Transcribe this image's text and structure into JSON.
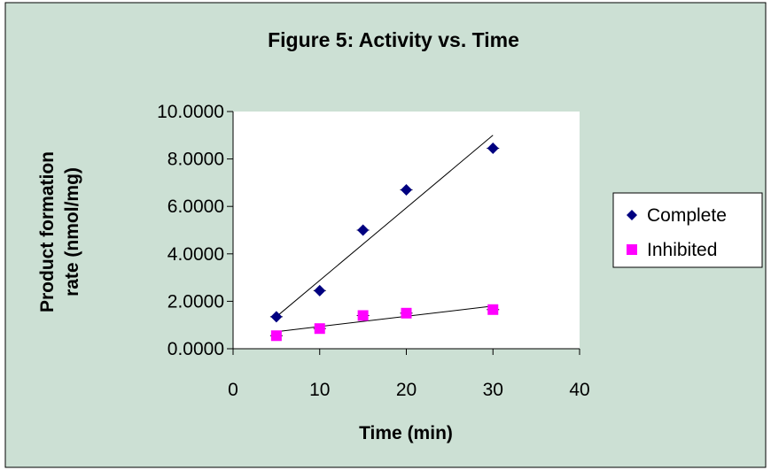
{
  "chart_data": {
    "type": "scatter",
    "title": "Figure 5: Activity vs. Time",
    "xlabel": "Time (min)",
    "ylabel_lines": [
      "Product formation",
      "rate (nmol/mg)"
    ],
    "xlim": [
      0,
      40
    ],
    "ylim": [
      0,
      10
    ],
    "x_ticks": [
      0,
      10,
      20,
      30,
      40
    ],
    "y_ticks": [
      0,
      2,
      4,
      6,
      8,
      10
    ],
    "y_tick_labels": [
      "0.0000",
      "2.0000",
      "4.0000",
      "6.0000",
      "8.0000",
      "10.0000"
    ],
    "grid": false,
    "legend_position": "right",
    "colors": {
      "chart_area": "#cce0d4",
      "plot_area": "#ffffff",
      "border": "#000000"
    },
    "series": [
      {
        "name": "Complete",
        "marker": "diamond",
        "color": "#000080",
        "x": [
          5,
          10,
          15,
          20,
          30
        ],
        "y": [
          1.35,
          2.45,
          5.0,
          6.7,
          8.45
        ],
        "trendline": [
          [
            5,
            1.35
          ],
          [
            30,
            9.0
          ]
        ]
      },
      {
        "name": "Inhibited",
        "marker": "square",
        "color": "#ff00ff",
        "x": [
          5,
          10,
          15,
          20,
          30
        ],
        "y": [
          0.55,
          0.85,
          1.4,
          1.5,
          1.65
        ],
        "trendline": [
          [
            5,
            0.72
          ],
          [
            30,
            1.8
          ]
        ]
      }
    ]
  }
}
